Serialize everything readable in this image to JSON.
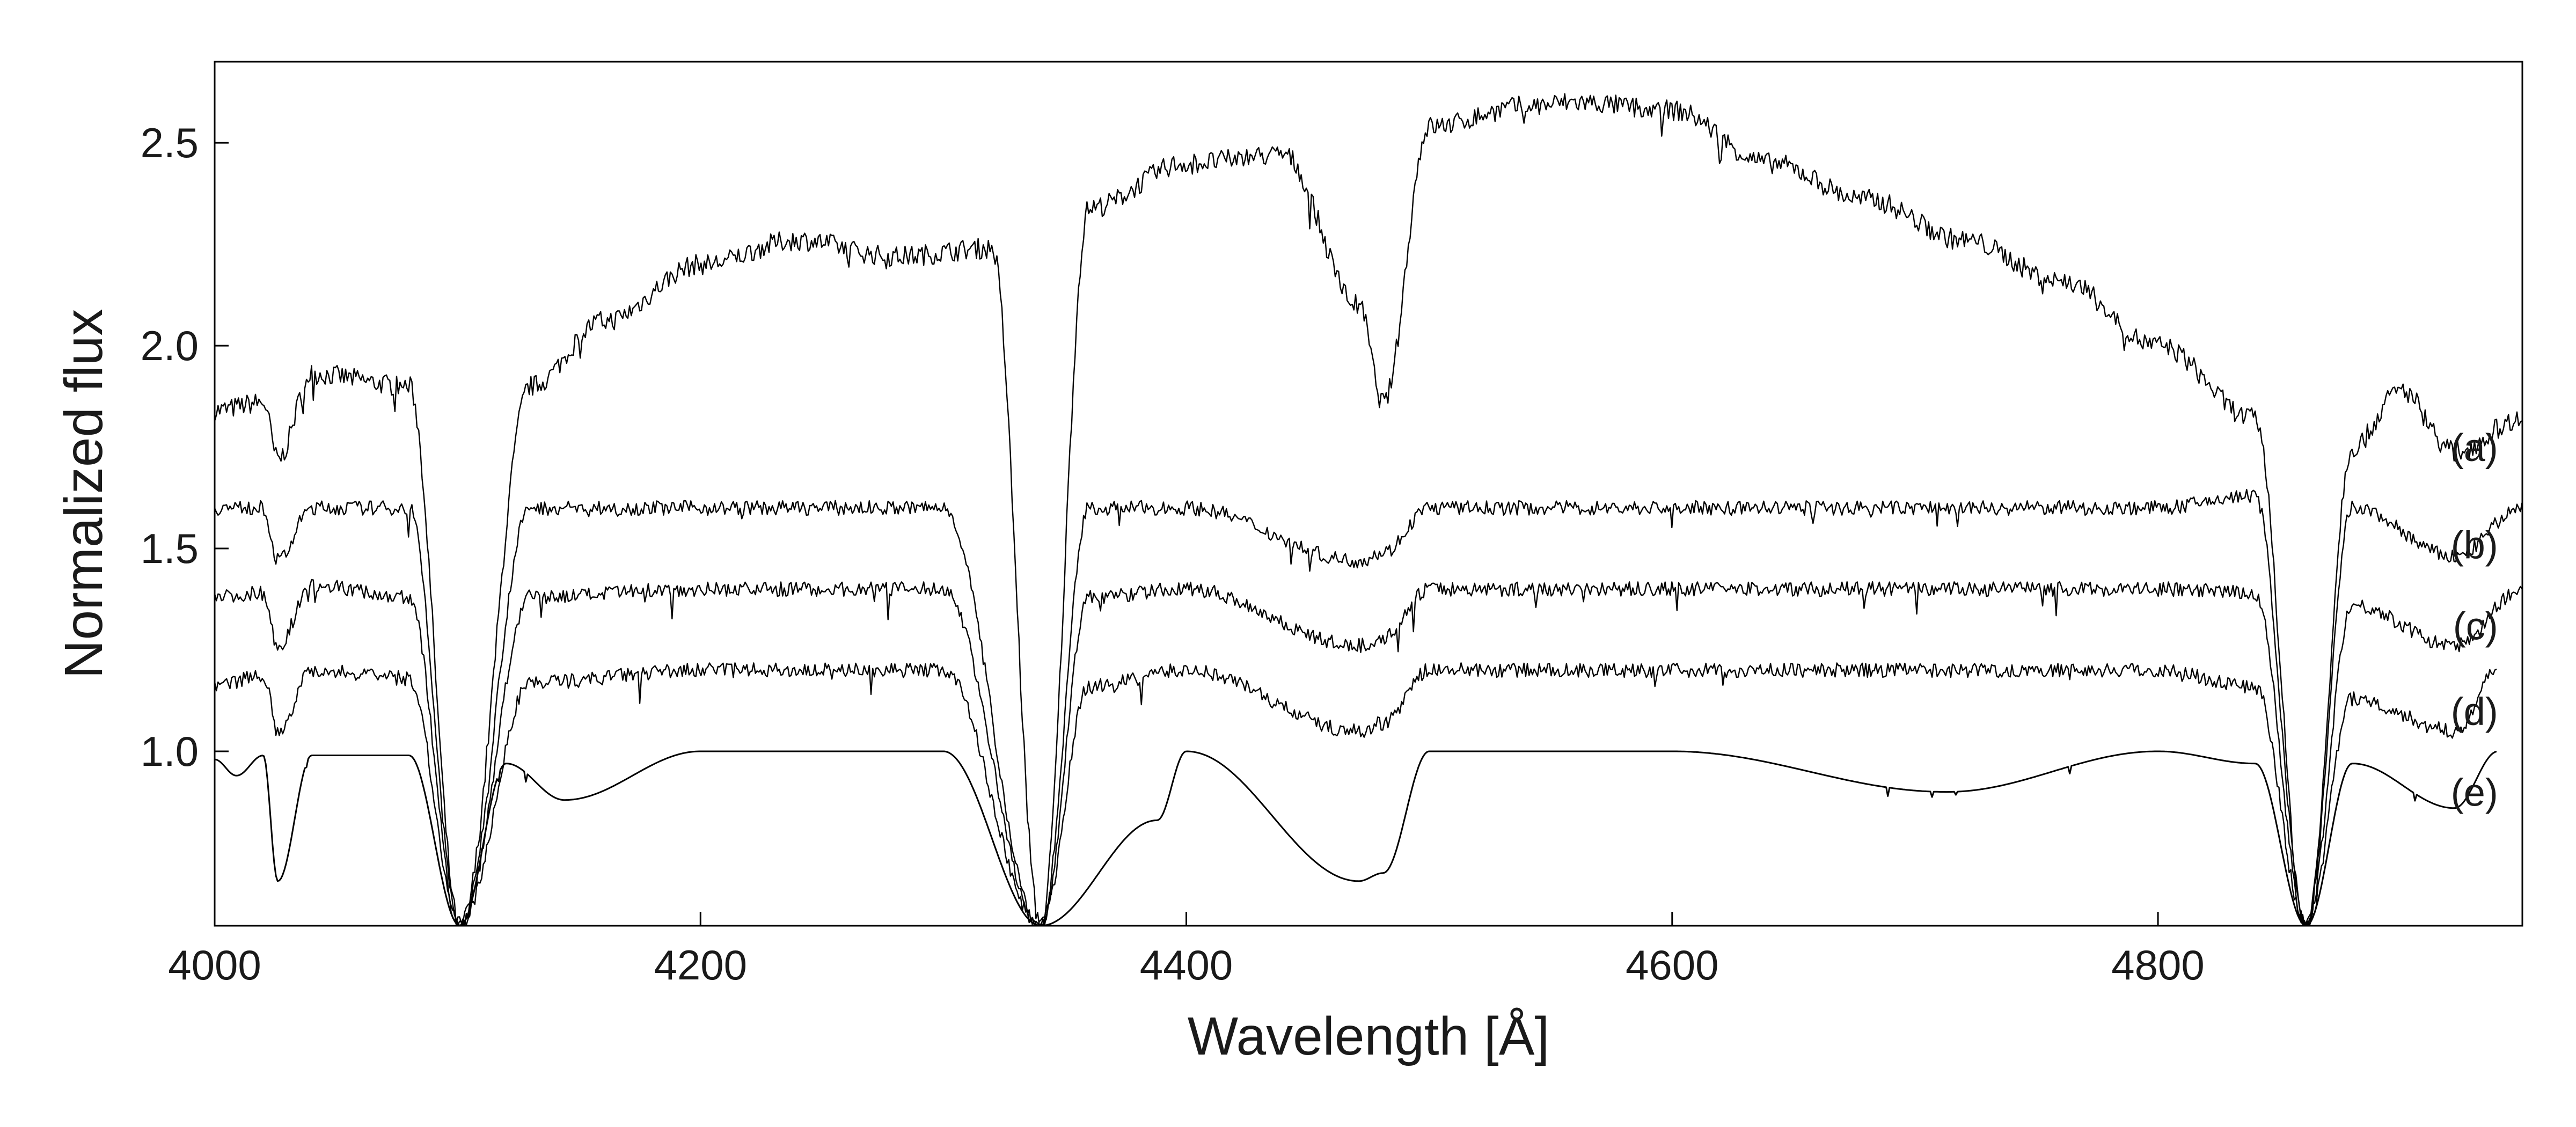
{
  "chart_data": {
    "type": "line",
    "title": "",
    "xlabel": "Wavelength [Å]",
    "ylabel": "Normalized flux",
    "xlim": [
      4000,
      4950
    ],
    "ylim": [
      0.57,
      2.7
    ],
    "xticks": [
      4000,
      4200,
      4400,
      4600,
      4800
    ],
    "yticks": [
      1.0,
      1.5,
      2.0,
      2.5
    ],
    "xtick_labels": [
      "4000",
      "4200",
      "4400",
      "4600",
      "4800"
    ],
    "ytick_labels": [
      "1.0",
      "1.5",
      "2.0",
      "2.5"
    ],
    "grid": false,
    "line_color": "#000000",
    "absorption_lines_angstrom": [
      4026,
      4101,
      4120,
      4144,
      4340,
      4388,
      4471,
      4481,
      4713,
      4861,
      4922
    ],
    "series": [
      {
        "label": "(a)",
        "label_x": 4940,
        "label_y": 1.75,
        "x": [
          4000,
          4020,
          4026,
          4040,
          4080,
          4101,
          4130,
          4160,
          4200,
          4240,
          4280,
          4320,
          4340,
          4360,
          4400,
          4440,
          4471,
          4481,
          4500,
          4540,
          4560,
          4600,
          4640,
          4680,
          4720,
          4760,
          4800,
          4840,
          4861,
          4880,
          4900,
          4922,
          4950
        ],
        "y": [
          1.84,
          1.86,
          1.72,
          1.93,
          1.9,
          0.57,
          1.9,
          2.06,
          2.2,
          2.26,
          2.22,
          2.24,
          0.57,
          2.34,
          2.45,
          2.47,
          2.1,
          1.86,
          2.54,
          2.59,
          2.6,
          2.58,
          2.45,
          2.36,
          2.26,
          2.16,
          2.0,
          1.82,
          0.57,
          1.75,
          1.89,
          1.74,
          1.82
        ]
      },
      {
        "label": "(b)",
        "label_x": 4940,
        "label_y": 1.51,
        "x": [
          4000,
          4020,
          4026,
          4040,
          4080,
          4101,
          4130,
          4200,
          4300,
          4340,
          4360,
          4400,
          4471,
          4481,
          4500,
          4600,
          4700,
          4800,
          4840,
          4861,
          4880,
          4922,
          4950
        ],
        "y": [
          1.6,
          1.6,
          1.47,
          1.6,
          1.6,
          0.57,
          1.6,
          1.6,
          1.6,
          0.57,
          1.6,
          1.6,
          1.47,
          1.49,
          1.6,
          1.6,
          1.6,
          1.6,
          1.63,
          0.57,
          1.6,
          1.48,
          1.6
        ]
      },
      {
        "label": "(c)",
        "label_x": 4940,
        "label_y": 1.31,
        "x": [
          4000,
          4020,
          4026,
          4040,
          4080,
          4101,
          4130,
          4200,
          4300,
          4340,
          4360,
          4400,
          4471,
          4481,
          4500,
          4600,
          4700,
          4800,
          4840,
          4861,
          4880,
          4922,
          4950
        ],
        "y": [
          1.38,
          1.39,
          1.26,
          1.41,
          1.38,
          0.57,
          1.38,
          1.4,
          1.4,
          0.57,
          1.38,
          1.4,
          1.26,
          1.28,
          1.4,
          1.4,
          1.4,
          1.4,
          1.39,
          0.57,
          1.36,
          1.26,
          1.4
        ]
      },
      {
        "label": "(d)",
        "label_x": 4940,
        "label_y": 1.1,
        "x": [
          4000,
          4020,
          4026,
          4040,
          4080,
          4101,
          4130,
          4200,
          4300,
          4340,
          4360,
          4400,
          4471,
          4481,
          4500,
          4600,
          4700,
          4800,
          4840,
          4861,
          4880,
          4922,
          4940
        ],
        "y": [
          1.16,
          1.19,
          1.05,
          1.2,
          1.18,
          0.57,
          1.17,
          1.2,
          1.2,
          0.57,
          1.16,
          1.2,
          1.05,
          1.07,
          1.2,
          1.2,
          1.2,
          1.2,
          1.16,
          0.57,
          1.13,
          1.05,
          1.2
        ]
      },
      {
        "label": "(e)",
        "label_x": 4940,
        "label_y": 0.9,
        "x": [
          4000,
          4009,
          4020,
          4026,
          4040,
          4080,
          4101,
          4120,
          4144,
          4200,
          4300,
          4340,
          4388,
          4400,
          4471,
          4481,
          4500,
          4600,
          4713,
          4800,
          4840,
          4861,
          4880,
          4922,
          4940
        ],
        "y": [
          0.98,
          0.94,
          0.99,
          0.68,
          0.99,
          0.99,
          0.57,
          0.97,
          0.88,
          1.0,
          1.0,
          0.57,
          0.83,
          1.0,
          0.68,
          0.7,
          1.0,
          1.0,
          0.9,
          1.0,
          0.97,
          0.57,
          0.97,
          0.86,
          1.0
        ]
      }
    ]
  }
}
